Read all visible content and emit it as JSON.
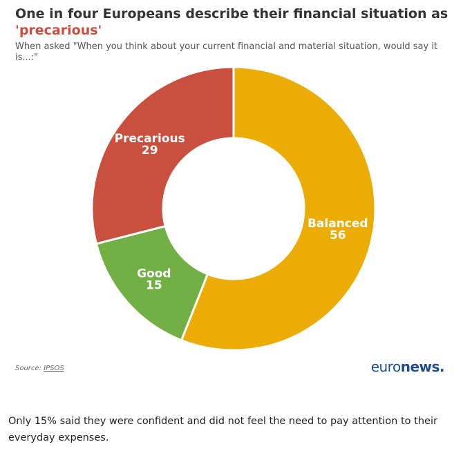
{
  "header": {
    "title_lead": "One in four Europeans describe their financial situation as",
    "title_quote_open": "'",
    "title_highlight": "precarious",
    "title_quote_close": "'",
    "subtitle": "When asked \"When you think about your current financial and material situation, would say it is...:\""
  },
  "chart_data": {
    "type": "pie",
    "donut": true,
    "categories": [
      "Balanced",
      "Good",
      "Precarious"
    ],
    "values": [
      56,
      15,
      29
    ],
    "colors": [
      "#ebac06",
      "#72b045",
      "#c9503e"
    ]
  },
  "footer": {
    "source_label": "Source:",
    "source_name": "IPSOS",
    "logo_regular": "euro",
    "logo_bold": "news",
    "logo_dot": "."
  },
  "caption": "Only 15% said they were confident and did not feel the need to pay attention to their everyday expenses."
}
